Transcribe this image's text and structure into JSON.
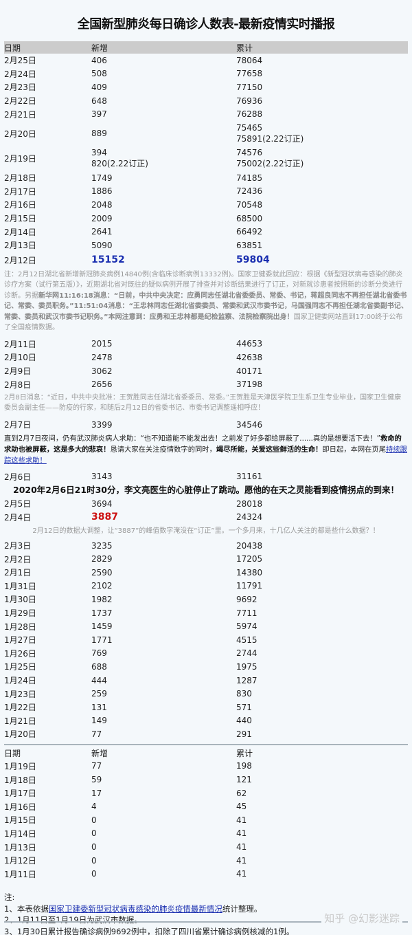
{
  "title": "全国新型肺炎每日确诊人数表-最新疫情实时播报",
  "columns": [
    "日期",
    "新增",
    "累计"
  ],
  "blocks": [
    {
      "k": "row",
      "d": "2月25日",
      "n": "406",
      "c": "78064"
    },
    {
      "k": "row",
      "d": "2月24日",
      "n": "508",
      "c": "77658"
    },
    {
      "k": "row",
      "d": "2月23日",
      "n": "409",
      "c": "77150"
    },
    {
      "k": "row",
      "d": "2月22日",
      "n": "648",
      "c": "76936"
    },
    {
      "k": "row",
      "d": "2月21日",
      "n": "397",
      "c": "76288"
    },
    {
      "k": "row",
      "d": "2月20日",
      "n": "889",
      "c": "75465\n75891(2.22订正)",
      "dbl": true
    },
    {
      "k": "row",
      "d": "2月19日",
      "n": "394\n820(2.22订正)",
      "c": "74576\n75002(2.22订正)",
      "dbl": true
    },
    {
      "k": "row",
      "d": "2月18日",
      "n": "1749",
      "c": "74185"
    },
    {
      "k": "row",
      "d": "2月17日",
      "n": "1886",
      "c": "72436"
    },
    {
      "k": "row",
      "d": "2月16日",
      "n": "2048",
      "c": "70548"
    },
    {
      "k": "row",
      "d": "2月15日",
      "n": "2009",
      "c": "68500"
    },
    {
      "k": "row",
      "d": "2月14日",
      "n": "2641",
      "c": "66492"
    },
    {
      "k": "row",
      "d": "2月13日",
      "n": "5090",
      "c": "63851"
    },
    {
      "k": "row",
      "d": "2月12日",
      "n": "15152",
      "c": "59804",
      "big": true
    },
    {
      "k": "note",
      "segs": [
        {
          "t": "注：2月12日湖北省新增新冠肺炎病例14840例(含临床诊断病例13332例)。国家卫健委就此回应：根据《新型冠状病毒感染的肺炎诊疗方案（试行第五版）》，近期湖北省对既往的疑似病例开展了排查并对诊断结果进行了订正，对新就诊患者按照新的诊断分类进行诊断。另据"
        },
        {
          "t": "新华网11:16:18消息：“日前，中共中央决定：应勇同志任湖北省委委员、常委、书记，蒋超良同志不再担任湖北省委书记、常委、委员职务。”11:51:04消息：“王忠林同志任湖北省委委员、常委和武汉市委书记，马国强同志不再担任湖北省委副书记、常委、委员和武汉市委书记职务。”本网注意到：应勇和王忠林都是纪检监察、法院检察院出身！",
          "b": true
        },
        {
          "t": "国家卫健委网站直到17:00终于公布了全国疫情数据。"
        }
      ]
    },
    {
      "k": "row",
      "d": "2月11日",
      "n": "2015",
      "c": "44653"
    },
    {
      "k": "row",
      "d": "2月10日",
      "n": "2478",
      "c": "42638"
    },
    {
      "k": "row",
      "d": "2月9日",
      "n": "3062",
      "c": "40171"
    },
    {
      "k": "row",
      "d": "2月8日",
      "n": "2656",
      "c": "37198"
    },
    {
      "k": "note",
      "segs": [
        {
          "t": "2月8日消息：“近日，中共中央批准：王贺胜同志任湖北省委委员、常委。”王贺胜是天津医学院卫生系卫生专业毕业，国家卫生健康委员会副主任——防疫的行家，和随后2月12日的省委书记、市委书记调整遥相呼应！"
        }
      ]
    },
    {
      "k": "row",
      "d": "2月7日",
      "n": "3399",
      "c": "34546"
    },
    {
      "k": "note",
      "dark": true,
      "segs": [
        {
          "t": "直到2月7日夜间，仍有武汉肺炎病人求助：“也不知道能不能发出去！之前发了好多都给屏蔽了......真的是想要活下去！”"
        },
        {
          "t": "救命的求助也被屏蔽，这是多大的悲哀！",
          "b": true
        },
        {
          "t": "恳请大家在关注疫情数字的同时，"
        },
        {
          "t": "竭尽所能，关爱这些鲜活的生命！",
          "b": true
        },
        {
          "t": "即日起，本网在页尾"
        },
        {
          "t": "持续跟踪这些求助！",
          "a": true
        }
      ]
    },
    {
      "k": "row",
      "d": "2月6日",
      "n": "3143",
      "c": "31161"
    },
    {
      "k": "banner",
      "t": "2020年2月6日21时30分，李文亮医生的心脏停止了跳动。愿他的在天之灵能看到疫情拐点的到来！"
    },
    {
      "k": "row",
      "d": "2月5日",
      "n": "3694",
      "c": "28018"
    },
    {
      "k": "row",
      "d": "2月4日",
      "n": "3887",
      "c": "24324",
      "red": true
    },
    {
      "k": "note",
      "center": true,
      "segs": [
        {
          "t": "2月12日的数据大调整，让“3887”的峰值数字淹没在“订正”里。一个多月来，十几亿人关注的都是些什么数据？！"
        }
      ]
    },
    {
      "k": "row",
      "d": "2月3日",
      "n": "3235",
      "c": "20438"
    },
    {
      "k": "row",
      "d": "2月2日",
      "n": "2829",
      "c": "17205"
    },
    {
      "k": "row",
      "d": "2月1日",
      "n": "2590",
      "c": "14380"
    },
    {
      "k": "row",
      "d": "1月31日",
      "n": "2102",
      "c": "11791"
    },
    {
      "k": "row",
      "d": "1月30日",
      "n": "1982",
      "c": "9692"
    },
    {
      "k": "row",
      "d": "1月29日",
      "n": "1737",
      "c": "7711"
    },
    {
      "k": "row",
      "d": "1月28日",
      "n": "1459",
      "c": "5974"
    },
    {
      "k": "row",
      "d": "1月27日",
      "n": "1771",
      "c": "4515"
    },
    {
      "k": "row",
      "d": "1月26日",
      "n": "769",
      "c": "2744"
    },
    {
      "k": "row",
      "d": "1月25日",
      "n": "688",
      "c": "1975"
    },
    {
      "k": "row",
      "d": "1月24日",
      "n": "444",
      "c": "1287"
    },
    {
      "k": "row",
      "d": "1月23日",
      "n": "259",
      "c": "830"
    },
    {
      "k": "row",
      "d": "1月22日",
      "n": "131",
      "c": "571"
    },
    {
      "k": "row",
      "d": "1月21日",
      "n": "149",
      "c": "440"
    },
    {
      "k": "row",
      "d": "1月20日",
      "n": "77",
      "c": "291"
    },
    {
      "k": "rule"
    },
    {
      "k": "header2"
    },
    {
      "k": "row",
      "d": "1月19日",
      "n": "77",
      "c": "198"
    },
    {
      "k": "row",
      "d": "1月18日",
      "n": "59",
      "c": "121"
    },
    {
      "k": "row",
      "d": "1月17日",
      "n": "17",
      "c": "62"
    },
    {
      "k": "row",
      "d": "1月16日",
      "n": "4",
      "c": "45"
    },
    {
      "k": "row",
      "d": "1月15日",
      "n": "0",
      "c": "41"
    },
    {
      "k": "row",
      "d": "1月14日",
      "n": "0",
      "c": "41"
    },
    {
      "k": "row",
      "d": "1月13日",
      "n": "0",
      "c": "41"
    },
    {
      "k": "row",
      "d": "1月12日",
      "n": "0",
      "c": "41"
    },
    {
      "k": "row",
      "d": "1月11日",
      "n": "0",
      "c": "41"
    }
  ],
  "footnotes": {
    "label": "注:",
    "line1_pre": "1、本表依据",
    "line1_link": "国家卫建委新型冠状病毒感染的肺炎疫情最新情况",
    "line1_post": "统计整理。",
    "line2": "2、1月11日至1月19日为武汉市数据。",
    "line3": "3、1月30日累计报告确诊病例9692例中，扣除了四川省累计确诊病例核减的1例。"
  },
  "watermark": "知乎 @幻影迷踪",
  "colors": {
    "highlight_blue": "#1a2fb0",
    "highlight_red": "#cc1111",
    "header_bg": "#cccccc"
  }
}
